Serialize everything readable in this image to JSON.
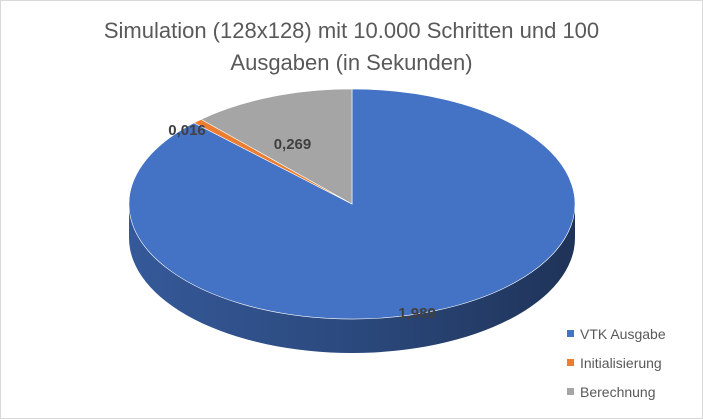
{
  "chart_data": {
    "type": "pie",
    "title_lines": [
      "Simulation (128x128) mit 10.000 Schritten und 100",
      "Ausgaben (in Sekunden)"
    ],
    "categories": [
      "VTK Ausgabe",
      "Initialisierung",
      "Berechnung"
    ],
    "values": [
      1.989,
      0.016,
      0.269
    ],
    "data_labels": [
      "1,989",
      "0,016",
      "0,269"
    ],
    "colors": [
      "#4472c4",
      "#ed7d31",
      "#a5a5a5"
    ],
    "style": "3d",
    "legend_position": "bottom-right"
  }
}
